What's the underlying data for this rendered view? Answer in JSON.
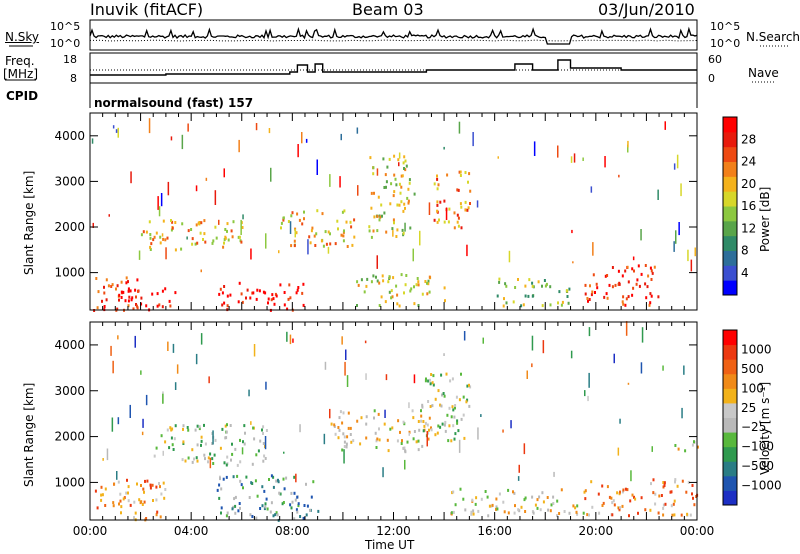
{
  "header": {
    "station": "Inuvik (fitACF)",
    "beam": "Beam 03",
    "date": "03/Jun/2010"
  },
  "strip_labels": {
    "nsky": "N.Sky",
    "freq": "Freq.",
    "mhz": "[MHz]",
    "cpid": "CPID",
    "nsearch": "N.Search",
    "nave": "Nave",
    "cpid_name": "normalsound (fast) 157"
  },
  "strip_ticks": {
    "nsky_left": [
      "10^5",
      "10^0"
    ],
    "nsky_right": [
      "10^5",
      "10^0"
    ],
    "freq_left": [
      "18",
      "8"
    ],
    "nave_right": [
      "60",
      "0"
    ]
  },
  "chart_data": [
    {
      "type": "heatmap",
      "panel": "power",
      "ylabel": "Slant Range [km]",
      "ylim": [
        180,
        4500
      ],
      "yticks": [
        1000,
        2000,
        3000,
        4000
      ],
      "colorbar": {
        "label": "Power [dB]",
        "ticks": [
          "28",
          "24",
          "20",
          "16",
          "12",
          "8",
          "4"
        ],
        "colors": [
          "#0000ff",
          "#3b4fd0",
          "#2d6e9a",
          "#2f8a67",
          "#59a54a",
          "#8cc840",
          "#d7d72a",
          "#f4b21c",
          "#f2801a",
          "#ee4a12",
          "#e81a0c",
          "#ff0000"
        ]
      },
      "blobs": [
        {
          "t": [
            0.1,
            2.0
          ],
          "r": [
            200,
            1000
          ],
          "level": 10
        },
        {
          "t": [
            1.0,
            3.5
          ],
          "r": [
            200,
            700
          ],
          "level": 11
        },
        {
          "t": [
            5.0,
            8.5
          ],
          "r": [
            200,
            800
          ],
          "level": 11
        },
        {
          "t": [
            2.0,
            6.2
          ],
          "r": [
            1500,
            2200
          ],
          "level": 7
        },
        {
          "t": [
            7.5,
            10.5
          ],
          "r": [
            1600,
            2400
          ],
          "level": 7
        },
        {
          "t": [
            10.5,
            14.0
          ],
          "r": [
            300,
            1000
          ],
          "level": 6
        },
        {
          "t": [
            13.5,
            15.0
          ],
          "r": [
            2000,
            3300
          ],
          "level": 8
        },
        {
          "t": [
            16.0,
            19.0
          ],
          "r": [
            300,
            900
          ],
          "level": 5
        },
        {
          "t": [
            19.5,
            22.5
          ],
          "r": [
            300,
            1200
          ],
          "level": 10
        },
        {
          "t": [
            11.0,
            12.8
          ],
          "r": [
            1800,
            3600
          ],
          "level": 6
        }
      ],
      "xlim": [
        0,
        24
      ]
    },
    {
      "type": "heatmap",
      "panel": "velocity",
      "ylabel": "Slant Range [km]",
      "xlabel": "Time UT",
      "ylim": [
        180,
        4500
      ],
      "yticks": [
        1000,
        2000,
        3000,
        4000
      ],
      "xticks": [
        "00:00",
        "04:00",
        "08:00",
        "12:00",
        "16:00",
        "20:00",
        "00:00"
      ],
      "colorbar": {
        "label": "Velocity [m s⁻¹]",
        "ticks": [
          "1000",
          "500",
          "100",
          "25",
          "−25",
          "−100",
          "−500",
          "−1000"
        ],
        "colors": [
          "#1c2fc4",
          "#1f55b0",
          "#2a7d85",
          "#2f9a4e",
          "#58b83c",
          "#b9b9b9",
          "#c8c8c8",
          "#f2b21a",
          "#f08a18",
          "#ef6114",
          "#ec3810",
          "#ff0000"
        ]
      },
      "blobs": [
        {
          "t": [
            0.1,
            3.0
          ],
          "r": [
            200,
            1100
          ],
          "level": 8
        },
        {
          "t": [
            2.5,
            7.0
          ],
          "r": [
            1400,
            2300
          ],
          "level": 5
        },
        {
          "t": [
            5.0,
            9.0
          ],
          "r": [
            200,
            1200
          ],
          "level": 3
        },
        {
          "t": [
            9.5,
            13.5
          ],
          "r": [
            1700,
            2600
          ],
          "level": 6
        },
        {
          "t": [
            13.0,
            15.0
          ],
          "r": [
            1900,
            3400
          ],
          "level": 5
        },
        {
          "t": [
            14.0,
            19.5
          ],
          "r": [
            300,
            900
          ],
          "level": 6
        },
        {
          "t": [
            19.5,
            24.0
          ],
          "r": [
            300,
            1100
          ],
          "level": 8
        },
        {
          "t": [
            23.0,
            24.0
          ],
          "r": [
            1700,
            2000
          ],
          "level": 6
        }
      ],
      "xlim": [
        0,
        24
      ]
    }
  ]
}
